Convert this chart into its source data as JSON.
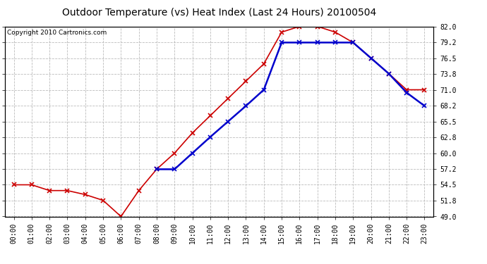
{
  "title": "Outdoor Temperature (vs) Heat Index (Last 24 Hours) 20100504",
  "copyright_text": "Copyright 2010 Cartronics.com",
  "hours": [
    "00:00",
    "01:00",
    "02:00",
    "03:00",
    "04:00",
    "05:00",
    "06:00",
    "07:00",
    "08:00",
    "09:00",
    "10:00",
    "11:00",
    "12:00",
    "13:00",
    "14:00",
    "15:00",
    "16:00",
    "17:00",
    "18:00",
    "19:00",
    "20:00",
    "21:00",
    "22:00",
    "23:00"
  ],
  "temp_red": [
    54.5,
    54.5,
    53.5,
    53.5,
    52.8,
    51.8,
    49.0,
    53.5,
    57.2,
    60.0,
    63.5,
    66.5,
    69.5,
    72.5,
    75.5,
    81.0,
    82.0,
    82.0,
    81.0,
    79.2,
    76.5,
    73.8,
    71.0,
    71.0
  ],
  "temp_blue": [
    null,
    null,
    null,
    null,
    null,
    null,
    null,
    null,
    57.2,
    57.2,
    60.0,
    62.8,
    65.5,
    68.2,
    71.0,
    79.2,
    79.2,
    79.2,
    79.2,
    79.2,
    76.5,
    73.8,
    70.5,
    68.2
  ],
  "ylim": [
    49.0,
    82.0
  ],
  "yticks": [
    49.0,
    51.8,
    54.5,
    57.2,
    60.0,
    62.8,
    65.5,
    68.2,
    71.0,
    73.8,
    76.5,
    79.2,
    82.0
  ],
  "ytick_labels": [
    "49.0",
    "51.8",
    "54.5",
    "57.2",
    "60.0",
    "62.8",
    "65.5",
    "68.2",
    "71.0",
    "73.8",
    "76.5",
    "79.2",
    "82.0"
  ],
  "red_color": "#cc0000",
  "blue_color": "#0000cc",
  "bg_color": "#ffffff",
  "grid_color": "#bbbbbb",
  "title_fontsize": 10,
  "copyright_fontsize": 6.5,
  "tick_fontsize": 7,
  "figwidth": 6.9,
  "figheight": 3.75,
  "dpi": 100
}
